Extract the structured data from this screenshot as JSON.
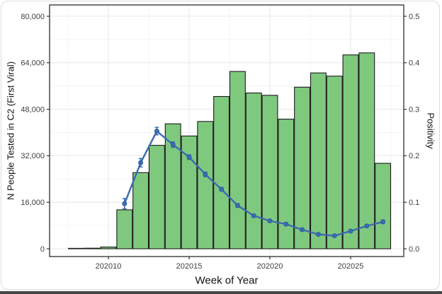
{
  "chart_data": {
    "type": "combo",
    "subtypes": [
      "bar",
      "line"
    ],
    "title": "",
    "x_axis": {
      "label": "Week of Year",
      "tick_values": [
        202010,
        202015,
        202020,
        202025
      ],
      "tick_labels": [
        "202010",
        "202015",
        "202020",
        "202025"
      ],
      "minor_tick_values": [
        202007.5,
        202012.5,
        202017.5,
        202022.5,
        202027.5
      ],
      "range": [
        202006.4,
        202028.3
      ]
    },
    "left_axis": {
      "label": "N People Tested in C2 (First Viral)",
      "tick_values": [
        0,
        16000,
        32000,
        48000,
        64000,
        80000
      ],
      "tick_labels": [
        "0",
        "16,000",
        "32,000",
        "48,000",
        "64,000",
        "80,000"
      ],
      "minor_tick_values": [
        8000,
        24000,
        40000,
        56000,
        72000
      ],
      "range": [
        -2700,
        83900
      ]
    },
    "right_axis": {
      "label": "Positivity",
      "tick_values": [
        0.0,
        0.1,
        0.2,
        0.3,
        0.4,
        0.5
      ],
      "tick_labels": [
        "0.0",
        "0.1",
        "0.2",
        "0.3",
        "0.4",
        "0.5"
      ],
      "range": [
        -0.017,
        0.524
      ]
    },
    "bars": {
      "name": "N People Tested in C2 (First Viral)",
      "axis": "left",
      "fill": "#7FC97F",
      "stroke": "#1A1A1A",
      "weeks": [
        202008,
        202009,
        202010,
        202011,
        202012,
        202013,
        202014,
        202015,
        202016,
        202017,
        202018,
        202019,
        202020,
        202021,
        202022,
        202023,
        202024,
        202025,
        202026,
        202027
      ],
      "values": [
        150,
        200,
        600,
        13400,
        26200,
        35600,
        43000,
        38800,
        43800,
        52400,
        61000,
        53600,
        52800,
        44600,
        55600,
        60500,
        59400,
        66700,
        67400,
        29400
      ]
    },
    "line": {
      "name": "Positivity",
      "axis": "right",
      "color": "#3B6CAE",
      "marker_stroke": "#2F5D9E",
      "weeks": [
        202011,
        202012,
        202013,
        202014,
        202015,
        202016,
        202017,
        202018,
        202019,
        202020,
        202021,
        202022,
        202023,
        202024,
        202025,
        202026,
        202027
      ],
      "values": [
        0.097,
        0.185,
        0.253,
        0.224,
        0.197,
        0.16,
        0.128,
        0.093,
        0.071,
        0.06,
        0.053,
        0.041,
        0.031,
        0.028,
        0.038,
        0.049,
        0.058
      ],
      "errors": [
        0.011,
        0.009,
        0.008,
        0.006,
        0.005,
        0.005,
        0.004,
        0.004,
        0.003,
        0.003,
        0.003,
        0.003,
        0.002,
        0.002,
        0.003,
        0.003,
        0.004
      ]
    },
    "grid": {
      "show": true,
      "major_color": "#E9E9E9",
      "minor_color": "#F4F4F4"
    },
    "panel": {
      "bg": "#FFFFFF",
      "border": "#3C3C3C"
    },
    "legend": "none"
  }
}
